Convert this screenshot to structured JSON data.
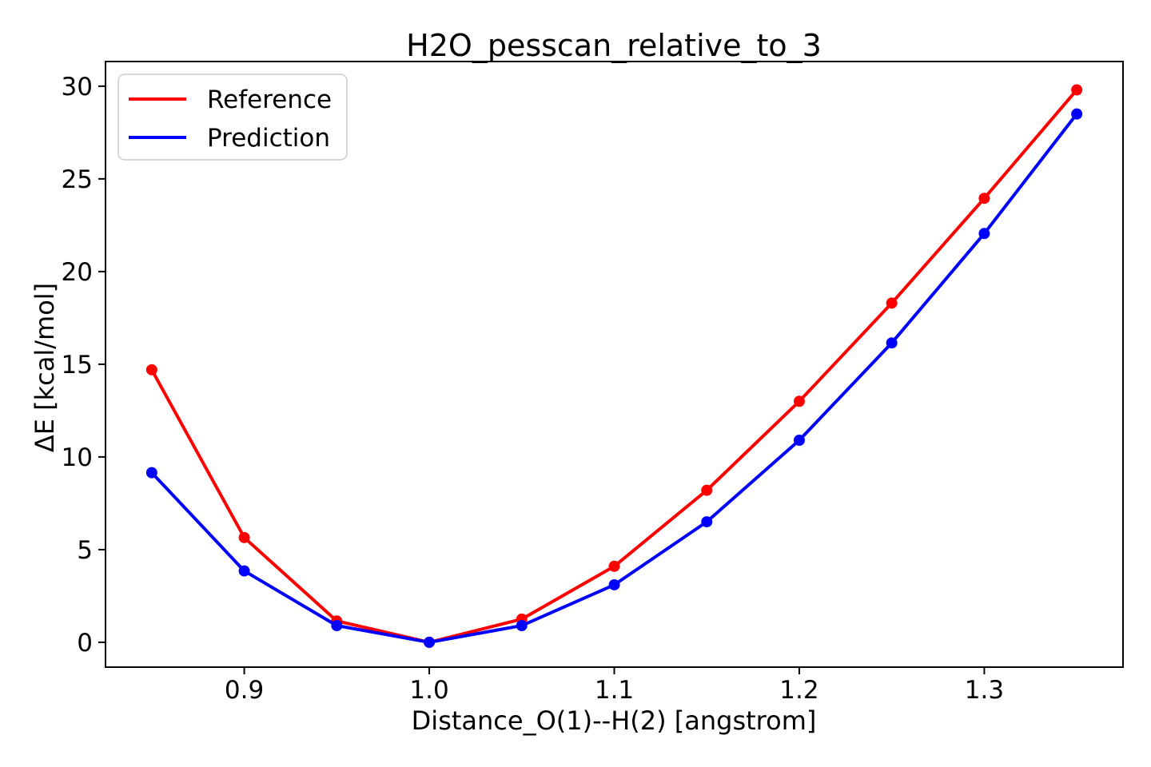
{
  "chart_data": {
    "type": "line",
    "title": "H2O_pesscan_relative_to_3",
    "xlabel": "Distance_O(1)--H(2) [angstrom]",
    "ylabel": "ΔE [kcal/mol]",
    "x": [
      0.85,
      0.9,
      0.95,
      1.0,
      1.05,
      1.1,
      1.15,
      1.2,
      1.25,
      1.3,
      1.35
    ],
    "series": [
      {
        "name": "Reference",
        "color": "#ff0000",
        "values": [
          14.7,
          5.65,
          1.15,
          0.0,
          1.25,
          4.1,
          8.2,
          13.0,
          18.3,
          23.95,
          29.8
        ]
      },
      {
        "name": "Prediction",
        "color": "#0000ff",
        "values": [
          9.15,
          3.85,
          0.9,
          0.0,
          0.9,
          3.1,
          6.5,
          10.9,
          16.15,
          22.05,
          28.5
        ]
      }
    ],
    "xticks": [
      0.9,
      1.0,
      1.1,
      1.2,
      1.3
    ],
    "xtick_labels": [
      "0.9",
      "1.0",
      "1.1",
      "1.2",
      "1.3"
    ],
    "yticks": [
      0,
      5,
      10,
      15,
      20,
      25,
      30
    ],
    "ytick_labels": [
      "0",
      "5",
      "10",
      "15",
      "20",
      "25",
      "30"
    ],
    "xlim": [
      0.825,
      1.375
    ],
    "ylim": [
      -1.34,
      31.33
    ],
    "grid": false,
    "legend_position": "upper left",
    "marker": "circle",
    "background_color": "#ffffff",
    "spine_color": "#000000"
  }
}
